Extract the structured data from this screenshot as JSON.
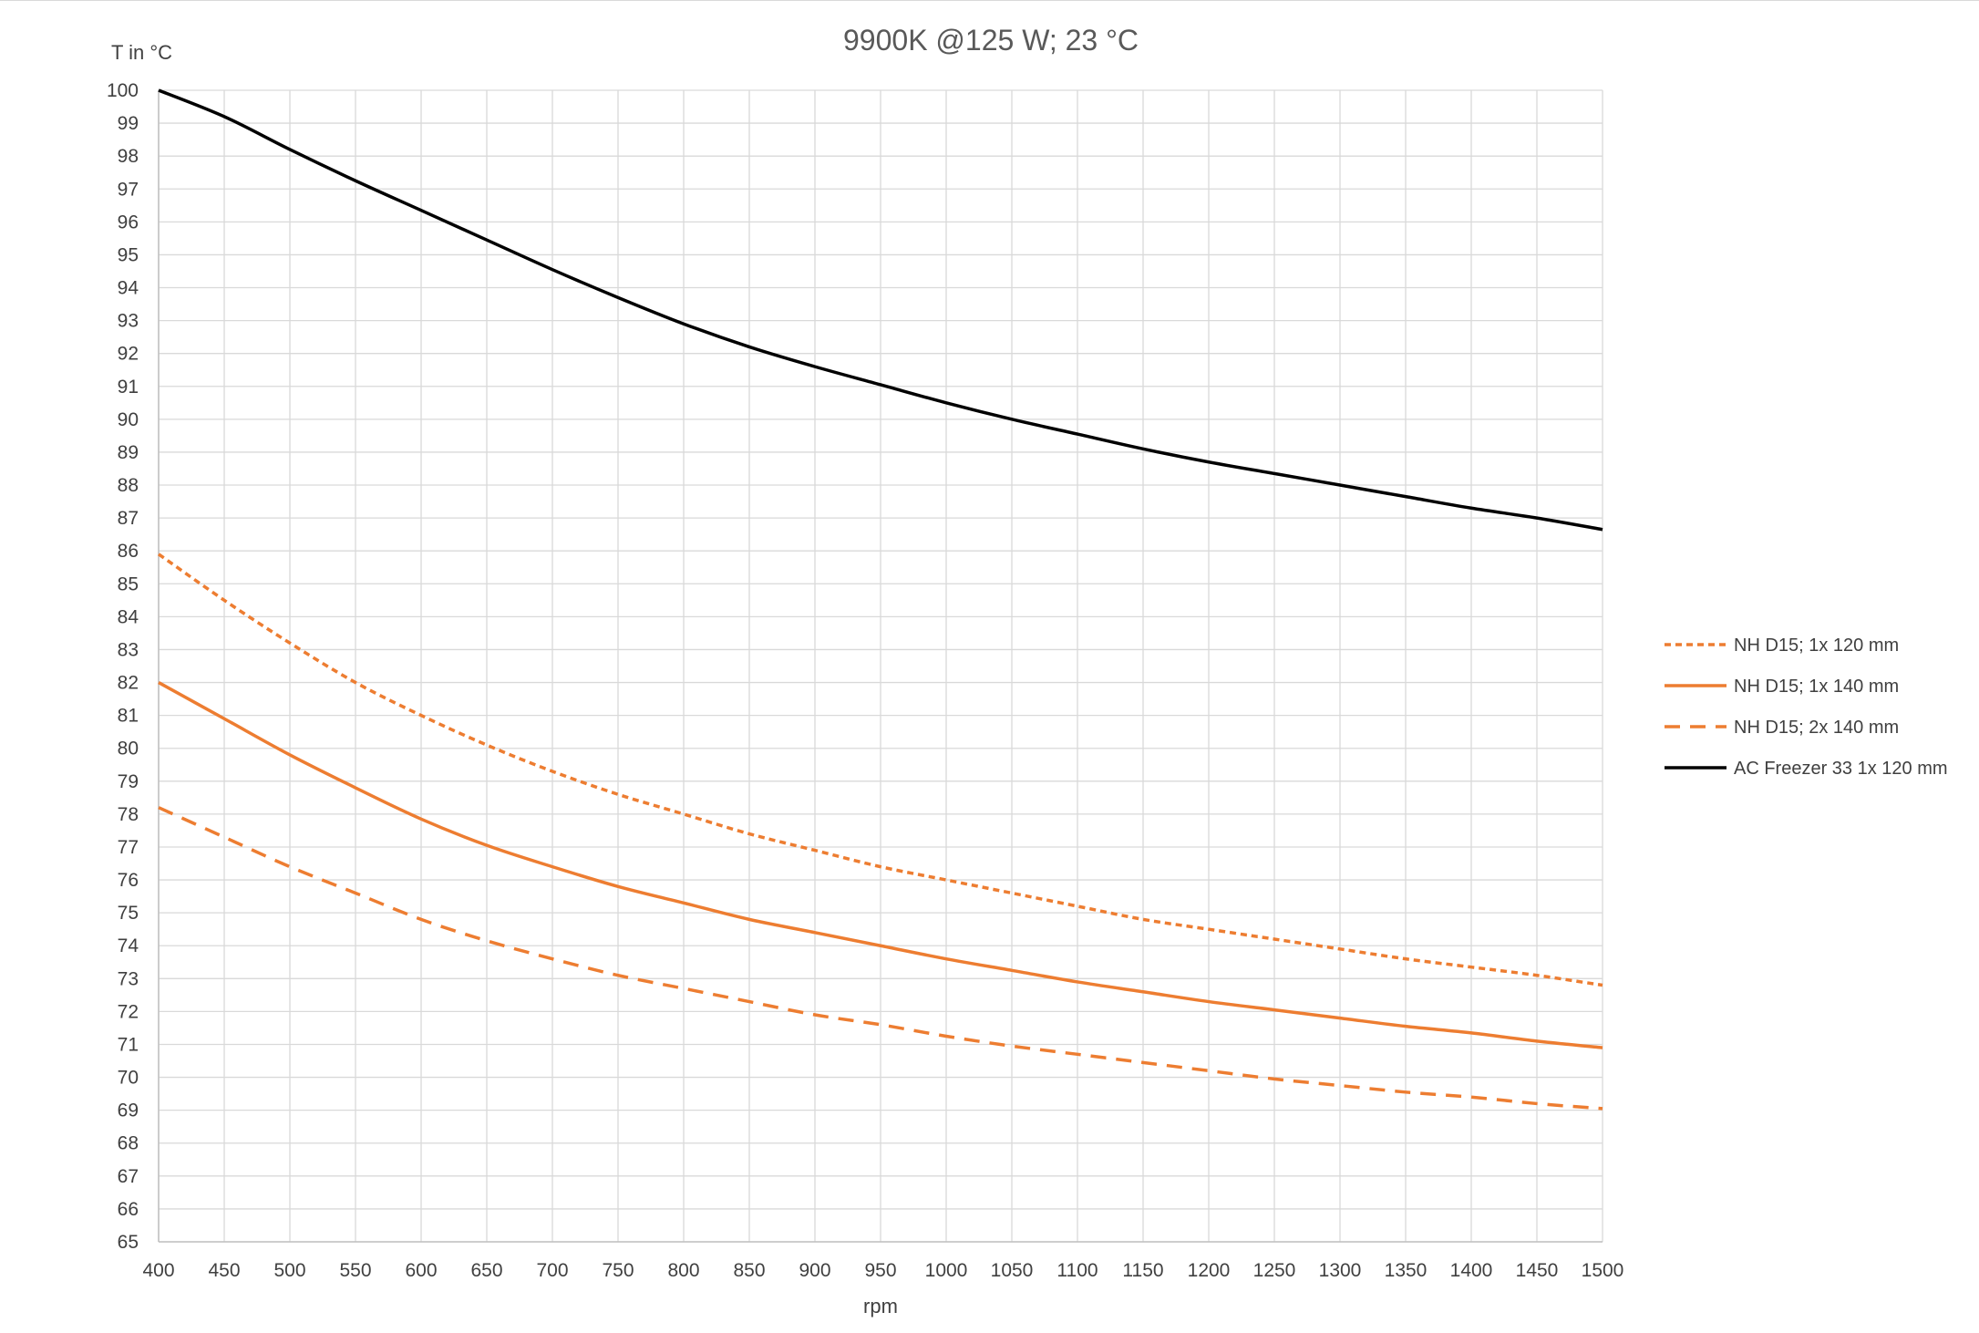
{
  "chart_data": {
    "type": "line",
    "title": "9900K @125 W; 23 °C",
    "xlabel": "rpm",
    "ylabel": "T in °C",
    "xlim": [
      400,
      1500
    ],
    "ylim": [
      65,
      100
    ],
    "x_ticks": [
      "400",
      "450",
      "500",
      "550",
      "600",
      "650",
      "700",
      "750",
      "800",
      "850",
      "900",
      "950",
      "1000",
      "1050",
      "1100",
      "1150",
      "1200",
      "1250",
      "1300",
      "1350",
      "1400",
      "1450",
      "1500"
    ],
    "y_ticks": [
      "65",
      "66",
      "67",
      "68",
      "69",
      "70",
      "71",
      "72",
      "73",
      "74",
      "75",
      "76",
      "77",
      "78",
      "79",
      "80",
      "81",
      "82",
      "83",
      "84",
      "85",
      "86",
      "87",
      "88",
      "89",
      "90",
      "91",
      "92",
      "93",
      "94",
      "95",
      "96",
      "97",
      "98",
      "99",
      "100"
    ],
    "grid": true,
    "legend_position": "right",
    "x": [
      400,
      450,
      500,
      550,
      600,
      650,
      700,
      750,
      800,
      850,
      900,
      950,
      1000,
      1050,
      1100,
      1150,
      1200,
      1250,
      1300,
      1350,
      1400,
      1450,
      1500
    ],
    "series": [
      {
        "name": "NH D15; 1x 120 mm",
        "color": "#ed7d31",
        "dash": "dotted",
        "values": [
          85.9,
          84.5,
          83.2,
          82.0,
          81.0,
          80.1,
          79.3,
          78.6,
          78.0,
          77.4,
          76.9,
          76.4,
          76.0,
          75.6,
          75.2,
          74.8,
          74.5,
          74.2,
          73.9,
          73.6,
          73.35,
          73.1,
          72.8
        ]
      },
      {
        "name": "NH D15; 1x 140 mm",
        "color": "#ed7d31",
        "dash": "solid",
        "values": [
          82.0,
          80.9,
          79.8,
          78.8,
          77.85,
          77.05,
          76.4,
          75.8,
          75.3,
          74.8,
          74.4,
          74.0,
          73.6,
          73.25,
          72.9,
          72.6,
          72.3,
          72.05,
          71.8,
          71.55,
          71.35,
          71.1,
          70.9
        ]
      },
      {
        "name": "NH D15; 2x 140 mm",
        "color": "#ed7d31",
        "dash": "dashed",
        "values": [
          78.2,
          77.3,
          76.4,
          75.6,
          74.8,
          74.15,
          73.6,
          73.1,
          72.7,
          72.3,
          71.9,
          71.6,
          71.25,
          70.95,
          70.7,
          70.45,
          70.2,
          69.95,
          69.75,
          69.55,
          69.4,
          69.2,
          69.05
        ]
      },
      {
        "name": "AC Freezer 33 1x 120 mm",
        "color": "#000000",
        "dash": "solid",
        "values": [
          100.0,
          99.2,
          98.2,
          97.25,
          96.35,
          95.45,
          94.55,
          93.7,
          92.9,
          92.2,
          91.6,
          91.05,
          90.5,
          90.0,
          89.55,
          89.1,
          88.7,
          88.35,
          88.0,
          87.65,
          87.3,
          87.0,
          86.65
        ]
      }
    ]
  }
}
